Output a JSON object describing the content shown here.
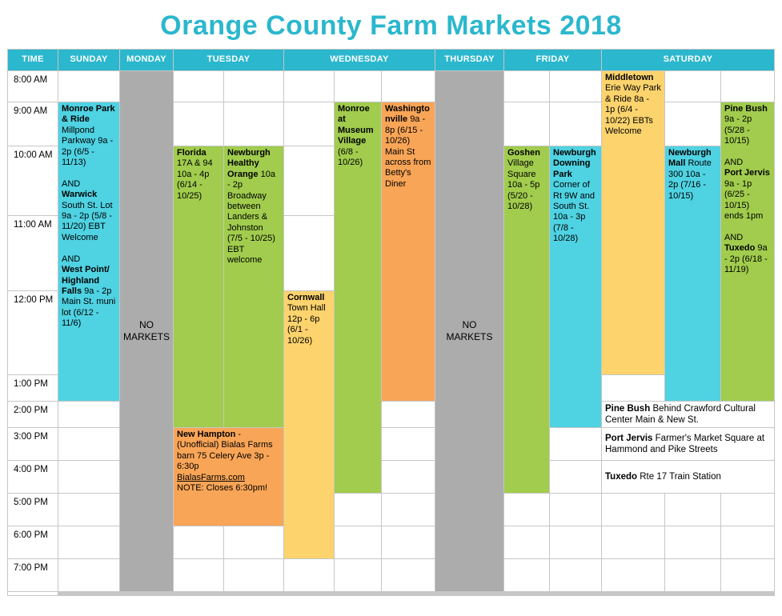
{
  "title": "Orange County Farm Markets 2018",
  "header": {
    "time": "TIME",
    "days": [
      "SUNDAY",
      "MONDAY",
      "TUESDAY",
      "WEDNESDAY",
      "THURSDAY",
      "FRIDAY",
      "SATURDAY"
    ]
  },
  "times": [
    "8:00 AM",
    "9:00 AM",
    "10:00 AM",
    "11:00 AM",
    "12:00 PM",
    "1:00 PM",
    "2:00 PM",
    "3:00 PM",
    "4:00 PM",
    "5:00 PM",
    "6:00 PM",
    "7:00 PM"
  ],
  "no_markets": "NO MARKETS",
  "events": {
    "sunday": {
      "name1": "Monroe Park & Ride",
      "details1": "Millpond Parkway 9a - 2p (6/5 - 11/13)",
      "and1": "AND",
      "name2": "Warwick",
      "details2": "South St. Lot 9a - 2p (5/8 - 11/20) EBT Welcome",
      "and2": "AND",
      "name3": "West Point/ Highland Falls",
      "details3": "9a - 2p Main St. muni lot (6/12 - 11/6)"
    },
    "florida": {
      "name": "Florida",
      "details": "17A & 94 10a - 4p (6/14 - 10/25)"
    },
    "newburgh_healthy": {
      "name": "Newburgh Healthy Orange",
      "details": "10a - 2p Broadway between Landers & Johnston (7/5 - 10/25) EBT welcome"
    },
    "new_hampton": {
      "name": "New Hampton",
      "details": "- (Unofficial) Bialas Farms barn 75 Celery Ave 3p - 6:30p",
      "link": "BialasFarms.com",
      "note": "NOTE: Closes 6:30pm!"
    },
    "cornwall": {
      "name": "Cornwall",
      "details": "Town Hall 12p - 6p (6/1 - 10/26)"
    },
    "monroe_museum": {
      "name": "Monroe at Museum Village",
      "details": "(6/8 - 10/26)"
    },
    "washingtonville": {
      "name": "Washingtonville",
      "details": "9a - 8p (6/15 - 10/26) Main St across from Betty's Diner"
    },
    "goshen": {
      "name": "Goshen",
      "details": "Village Square 10a - 5p (5/20 - 10/28)"
    },
    "newburgh_downing": {
      "name": "Newburgh Downing Park",
      "details": "Corner of Rt 9W and South St. 10a - 3p (7/8 - 10/28)"
    },
    "middletown": {
      "name": "Middletown",
      "details": "Erie Way Park & Ride 8a - 1p (6/4 - 10/22) EBTs Welcome"
    },
    "newburgh_mall": {
      "name": "Newburgh Mall",
      "details": "Route 300 10a - 2p (7/16 - 10/15)"
    },
    "saturday_stack": {
      "name1": "Pine Bush",
      "details1": "9a - 2p (5/28 - 10/15)",
      "and1": "AND",
      "name2": "Port Jervis",
      "details2": "9a - 1p (6/25 - 10/15) ends 1pm",
      "and2": "AND",
      "name3": "Tuxedo",
      "details3": "9a - 2p (6/18 - 11/19)"
    }
  },
  "notes": [
    {
      "name": "Pine Bush",
      "details": "Behind Crawford Cultural Center Main & New St."
    },
    {
      "name": "Port Jervis",
      "details": "Farmer's Market Square at Hammond and Pike Streets"
    },
    {
      "name": "Tuxedo",
      "details": "Rte 17 Train Station"
    }
  ],
  "colors": {
    "header": "#2bb7cd",
    "cyan": "#4fd2e2",
    "green": "#a1cc4d",
    "yellow": "#fcd36d",
    "orange": "#f9a557",
    "gray": "#acacac",
    "grid_line": "#c6c6c6"
  }
}
